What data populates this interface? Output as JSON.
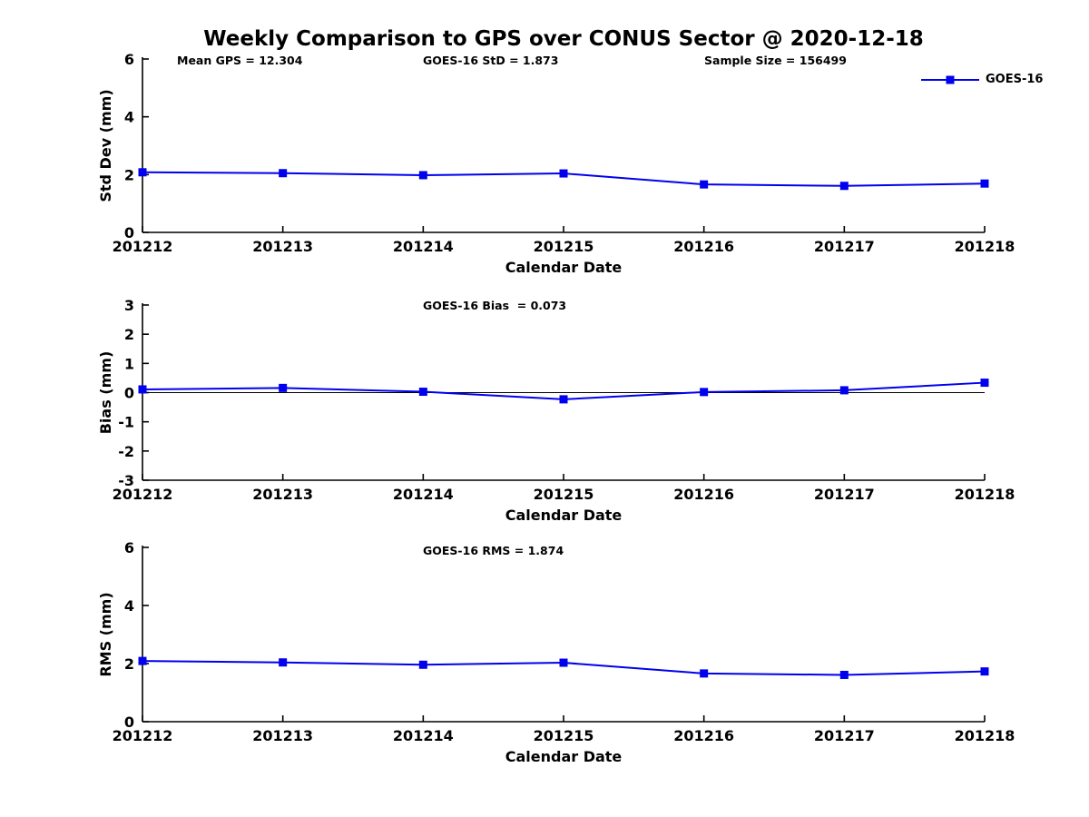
{
  "title": "Weekly Comparison to GPS over CONUS Sector @ 2020-12-18",
  "legend": {
    "label": "GOES-16"
  },
  "colors": {
    "series": "#0000EE",
    "axis": "#000000",
    "text": "#000000",
    "zero_line": "#000000",
    "background": "#FFFFFF"
  },
  "chart_data": [
    {
      "type": "line",
      "id": "std-dev",
      "title": "",
      "xlabel": "Calendar Date",
      "ylabel": "Std Dev (mm)",
      "categories": [
        "201212",
        "201213",
        "201214",
        "201215",
        "201216",
        "201217",
        "201218"
      ],
      "series": [
        {
          "name": "GOES-16",
          "values": [
            2.08,
            2.05,
            1.98,
            2.04,
            1.66,
            1.61,
            1.69
          ]
        }
      ],
      "ylim": [
        0,
        6
      ],
      "yticks": [
        0,
        2,
        4,
        6
      ],
      "grid": false,
      "zero_line": false,
      "legend_position": "top-right-outside",
      "annotations": [
        {
          "text": "Mean GPS = 12.304"
        },
        {
          "text": "GOES-16 StD = 1.873"
        },
        {
          "text": "Sample Size = 156499"
        }
      ]
    },
    {
      "type": "line",
      "id": "bias",
      "title": "",
      "xlabel": "Calendar Date",
      "ylabel": "Bias (mm)",
      "categories": [
        "201212",
        "201213",
        "201214",
        "201215",
        "201216",
        "201217",
        "201218"
      ],
      "series": [
        {
          "name": "GOES-16",
          "values": [
            0.11,
            0.16,
            0.03,
            -0.23,
            0.02,
            0.08,
            0.34
          ]
        }
      ],
      "ylim": [
        -3,
        3
      ],
      "yticks": [
        3,
        2,
        1,
        0,
        -1,
        -2,
        -3
      ],
      "grid": false,
      "zero_line": true,
      "legend_position": "none",
      "annotations": [
        {
          "text": "GOES-16 Bias  = 0.073"
        }
      ]
    },
    {
      "type": "line",
      "id": "rms",
      "title": "",
      "xlabel": "Calendar Date",
      "ylabel": "RMS (mm)",
      "categories": [
        "201212",
        "201213",
        "201214",
        "201215",
        "201216",
        "201217",
        "201218"
      ],
      "series": [
        {
          "name": "GOES-16",
          "values": [
            2.09,
            2.04,
            1.96,
            2.03,
            1.66,
            1.61,
            1.73
          ]
        }
      ],
      "ylim": [
        0,
        6
      ],
      "yticks": [
        0,
        2,
        4,
        6
      ],
      "grid": false,
      "zero_line": false,
      "legend_position": "none",
      "annotations": [
        {
          "text": "GOES-16 RMS = 1.874"
        }
      ]
    }
  ]
}
